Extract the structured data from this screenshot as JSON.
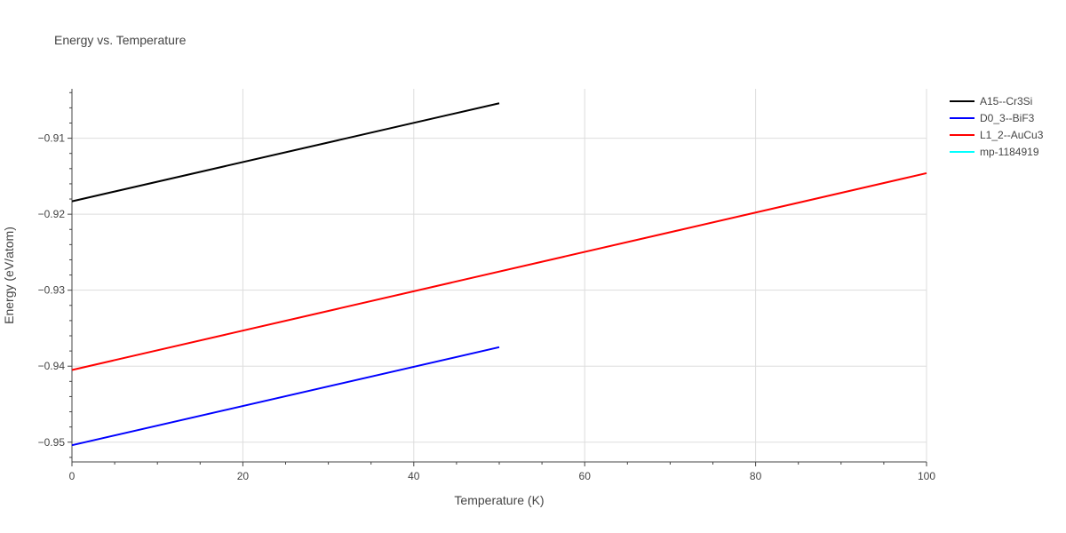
{
  "chart_data": {
    "type": "line",
    "title": "Energy vs. Temperature",
    "xlabel": "Temperature (K)",
    "ylabel": "Energy (eV/atom)",
    "xlim": [
      0,
      100
    ],
    "ylim": [
      -0.9526,
      -0.9035
    ],
    "x_ticks": [
      0,
      20,
      40,
      60,
      80,
      100
    ],
    "x_tick_labels": [
      "0",
      "20",
      "40",
      "60",
      "80",
      "100"
    ],
    "y_ticks": [
      -0.95,
      -0.94,
      -0.93,
      -0.92,
      -0.91
    ],
    "y_tick_labels": [
      "−0.95",
      "−0.94",
      "−0.93",
      "−0.92",
      "−0.91"
    ],
    "grid": true,
    "legend_position": "top-right",
    "series": [
      {
        "name": "A15--Cr3Si",
        "color": "#000000",
        "x": [
          0,
          50
        ],
        "y": [
          -0.9183,
          -0.9054
        ]
      },
      {
        "name": "D0_3--BiF3",
        "color": "#0000ff",
        "x": [
          0,
          50
        ],
        "y": [
          -0.9504,
          -0.9375
        ]
      },
      {
        "name": "L1_2--AuCu3",
        "color": "#ff0000",
        "x": [
          0,
          100
        ],
        "y": [
          -0.9405,
          -0.9146
        ]
      },
      {
        "name": "mp-1184919",
        "color": "#00ffff",
        "x": [],
        "y": []
      }
    ]
  }
}
